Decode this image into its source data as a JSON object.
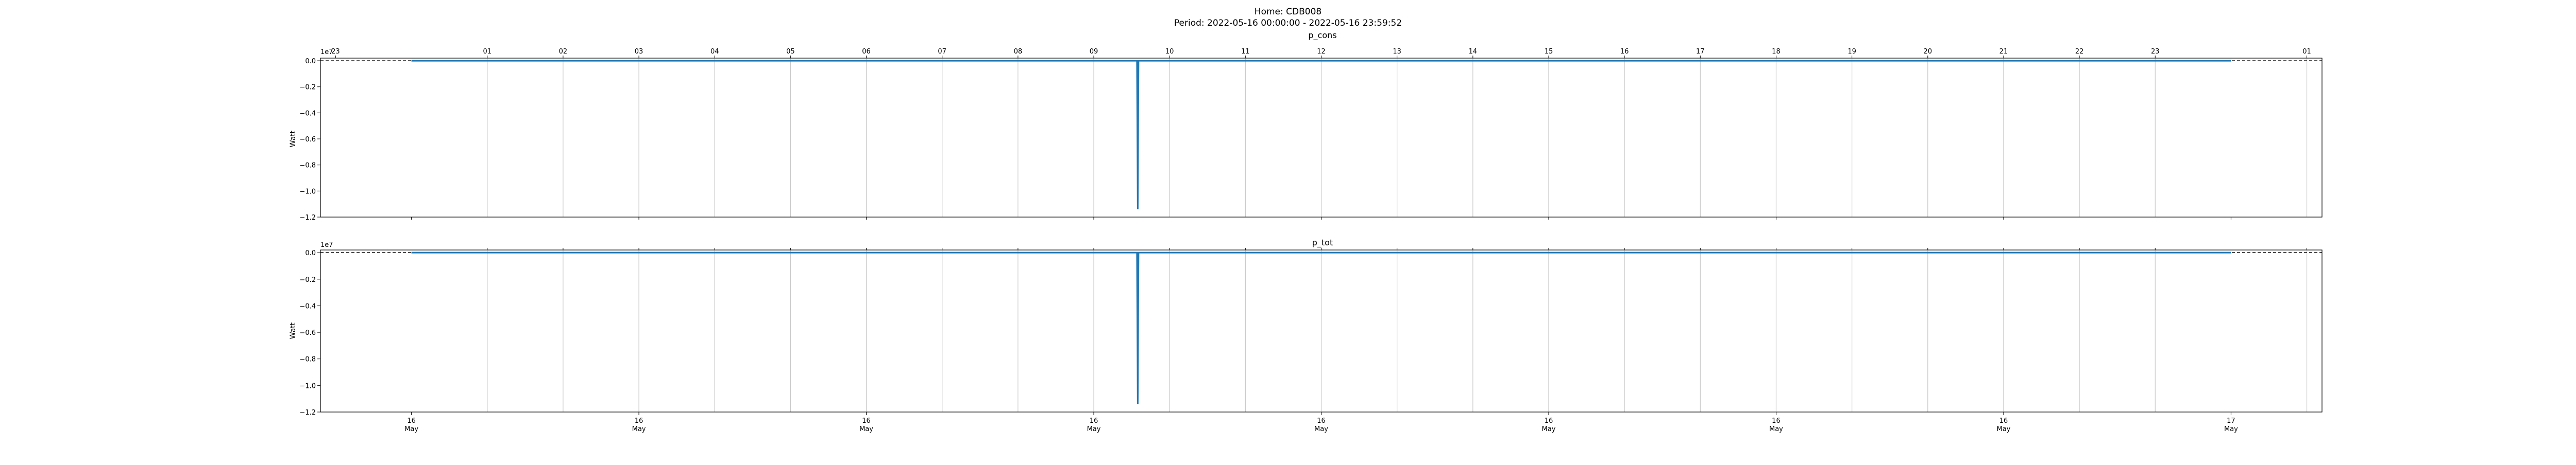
{
  "figure": {
    "home": "Home: CDB008",
    "period": "Period: 2022-05-16 00:00:00 - 2022-05-16 23:59:52"
  },
  "chart_data": [
    {
      "type": "line",
      "title": "p_cons",
      "ylabel": "Watt",
      "y_offset_label": "1e7",
      "y_scale_factor": 10000000,
      "ylim": [
        -1.2,
        0.02
      ],
      "y_ticks": [
        0.0,
        -0.2,
        -0.4,
        -0.6,
        -0.8,
        -1.0,
        -1.2
      ],
      "y_tick_labels": [
        "0.0",
        "−0.2",
        "−0.4",
        "−0.6",
        "−0.8",
        "−1.0",
        "−1.2"
      ],
      "xlim_hours": [
        -1.2,
        25.2
      ],
      "top_hour_ticks": [
        -1,
        1,
        2,
        3,
        4,
        5,
        6,
        7,
        8,
        9,
        10,
        11,
        12,
        13,
        14,
        15,
        16,
        17,
        18,
        19,
        20,
        21,
        22,
        23,
        25
      ],
      "top_hour_labels": [
        "23",
        "01",
        "02",
        "03",
        "04",
        "05",
        "06",
        "07",
        "08",
        "09",
        "10",
        "11",
        "12",
        "13",
        "14",
        "15",
        "16",
        "17",
        "18",
        "19",
        "20",
        "21",
        "22",
        "23",
        "01"
      ],
      "grid_hours": [
        1,
        2,
        3,
        4,
        5,
        6,
        7,
        8,
        9,
        10,
        11,
        12,
        13,
        14,
        15,
        16,
        17,
        18,
        19,
        20,
        21,
        22,
        23,
        25
      ],
      "zero_line": "dashed",
      "series": [
        {
          "color": "#1f77b4",
          "x_hours": [
            0,
            9.57,
            9.58,
            9.59,
            24
          ],
          "values": [
            0.0,
            0.0,
            -1.14,
            0.0,
            0.0
          ]
        }
      ]
    },
    {
      "type": "line",
      "title": "p_tot",
      "ylabel": "Watt",
      "y_offset_label": "1e7",
      "y_scale_factor": 10000000,
      "ylim": [
        -1.2,
        0.02
      ],
      "y_ticks": [
        0.0,
        -0.2,
        -0.4,
        -0.6,
        -0.8,
        -1.0,
        -1.2
      ],
      "y_tick_labels": [
        "0.0",
        "−0.2",
        "−0.4",
        "−0.6",
        "−0.8",
        "−1.0",
        "−1.2"
      ],
      "xlim_hours": [
        -1.2,
        25.2
      ],
      "bottom_ticks_hours": [
        0,
        3,
        6,
        9,
        12,
        15,
        18,
        21,
        24
      ],
      "bottom_tick_labels": [
        [
          "16",
          "May"
        ],
        [
          "16",
          "May"
        ],
        [
          "16",
          "May"
        ],
        [
          "16",
          "May"
        ],
        [
          "16",
          "May"
        ],
        [
          "16",
          "May"
        ],
        [
          "16",
          "May"
        ],
        [
          "16",
          "May"
        ],
        [
          "17",
          "May"
        ]
      ],
      "grid_hours": [
        1,
        2,
        3,
        4,
        5,
        6,
        7,
        8,
        9,
        10,
        11,
        12,
        13,
        14,
        15,
        16,
        17,
        18,
        19,
        20,
        21,
        22,
        23,
        25
      ],
      "zero_line": "dashed",
      "series": [
        {
          "color": "#1f77b4",
          "x_hours": [
            0,
            9.57,
            9.58,
            9.59,
            24
          ],
          "values": [
            0.0,
            0.0,
            -1.14,
            0.0,
            0.0
          ]
        }
      ]
    }
  ]
}
